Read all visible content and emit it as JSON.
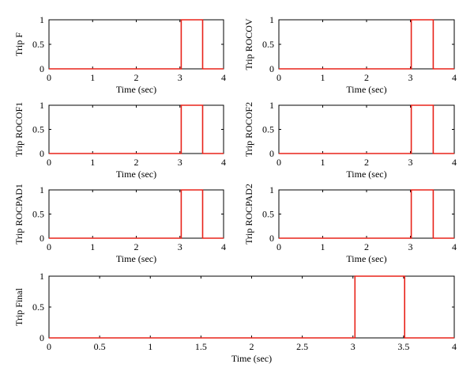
{
  "chart_data": [
    {
      "type": "line",
      "ylabel": "Trip F",
      "xlabel": "Time (sec)",
      "xlim": [
        0,
        4
      ],
      "ylim": [
        0,
        1
      ],
      "xticks": [
        0,
        1,
        2,
        3,
        4
      ],
      "xtick_labels": [
        "0",
        "1",
        "2",
        "3",
        "4"
      ],
      "yticks": [
        0,
        0.5,
        1
      ],
      "ytick_labels": [
        "0",
        "0.5",
        "1"
      ],
      "series": [
        {
          "color": "#e8231a",
          "x": [
            0,
            3.03,
            3.03,
            3.52,
            3.52,
            4
          ],
          "y": [
            0,
            0,
            1,
            1,
            0,
            0
          ]
        }
      ]
    },
    {
      "type": "line",
      "ylabel": "Trip ROCOV",
      "xlabel": "Time (sec)",
      "xlim": [
        0,
        4
      ],
      "ylim": [
        0,
        1
      ],
      "xticks": [
        0,
        1,
        2,
        3,
        4
      ],
      "xtick_labels": [
        "0",
        "1",
        "2",
        "3",
        "4"
      ],
      "yticks": [
        0,
        0.5,
        1
      ],
      "ytick_labels": [
        "0",
        "0.5",
        "1"
      ],
      "series": [
        {
          "color": "#e8231a",
          "x": [
            0,
            3.02,
            3.02,
            3.52,
            3.52,
            4
          ],
          "y": [
            0,
            0,
            1,
            1,
            0,
            0
          ]
        }
      ]
    },
    {
      "type": "line",
      "ylabel": "Trip ROCOF1",
      "xlabel": "Time (sec)",
      "xlim": [
        0,
        4
      ],
      "ylim": [
        0,
        1
      ],
      "xticks": [
        0,
        1,
        2,
        3,
        4
      ],
      "xtick_labels": [
        "0",
        "1",
        "2",
        "3",
        "4"
      ],
      "yticks": [
        0,
        0.5,
        1
      ],
      "ytick_labels": [
        "0",
        "0.5",
        "1"
      ],
      "series": [
        {
          "color": "#e8231a",
          "x": [
            0,
            3.03,
            3.03,
            3.52,
            3.52,
            4
          ],
          "y": [
            0,
            0,
            1,
            1,
            0,
            0
          ]
        }
      ]
    },
    {
      "type": "line",
      "ylabel": "Trip ROCOF2",
      "xlabel": "Time (sec)",
      "xlim": [
        0,
        4
      ],
      "ylim": [
        0,
        1
      ],
      "xticks": [
        0,
        1,
        2,
        3,
        4
      ],
      "xtick_labels": [
        "0",
        "1",
        "2",
        "3",
        "4"
      ],
      "yticks": [
        0,
        0.5,
        1
      ],
      "ytick_labels": [
        "0",
        "0.5",
        "1"
      ],
      "series": [
        {
          "color": "#e8231a",
          "x": [
            0,
            3.02,
            3.02,
            3.52,
            3.52,
            4
          ],
          "y": [
            0,
            0,
            1,
            1,
            0,
            0
          ]
        }
      ]
    },
    {
      "type": "line",
      "ylabel": "Trip ROCPAD1",
      "xlabel": "Time (sec)",
      "xlim": [
        0,
        4
      ],
      "ylim": [
        0,
        1
      ],
      "xticks": [
        0,
        1,
        2,
        3,
        4
      ],
      "xtick_labels": [
        "0",
        "1",
        "2",
        "3",
        "4"
      ],
      "yticks": [
        0,
        0.5,
        1
      ],
      "ytick_labels": [
        "0",
        "0.5",
        "1"
      ],
      "series": [
        {
          "color": "#e8231a",
          "x": [
            0,
            3.03,
            3.03,
            3.52,
            3.52,
            4
          ],
          "y": [
            0,
            0,
            1,
            1,
            0,
            0
          ]
        }
      ]
    },
    {
      "type": "line",
      "ylabel": "Trip ROCPAD2",
      "xlabel": "Time (sec)",
      "xlim": [
        0,
        4
      ],
      "ylim": [
        0,
        1
      ],
      "xticks": [
        0,
        1,
        2,
        3,
        4
      ],
      "xtick_labels": [
        "0",
        "1",
        "2",
        "3",
        "4"
      ],
      "yticks": [
        0,
        0.5,
        1
      ],
      "ytick_labels": [
        "0",
        "0.5",
        "1"
      ],
      "series": [
        {
          "color": "#e8231a",
          "x": [
            0,
            3.02,
            3.02,
            3.52,
            3.52,
            4
          ],
          "y": [
            0,
            0,
            1,
            1,
            0,
            0
          ]
        }
      ]
    },
    {
      "type": "line",
      "ylabel": "Trip Final",
      "xlabel": "Time (sec)",
      "xlim": [
        0,
        4
      ],
      "ylim": [
        0,
        1
      ],
      "xticks": [
        0,
        0.5,
        1,
        1.5,
        2,
        2.5,
        3,
        3.5,
        4
      ],
      "xtick_labels": [
        "0",
        "0.5",
        "1",
        "1.5",
        "2",
        "2.5",
        "3",
        "3.5",
        "4"
      ],
      "yticks": [
        0,
        0.5,
        1
      ],
      "ytick_labels": [
        "0",
        "0.5",
        "1"
      ],
      "series": [
        {
          "color": "#e8231a",
          "x": [
            0,
            3.02,
            3.02,
            3.51,
            3.51,
            4
          ],
          "y": [
            0,
            0,
            1,
            1,
            0,
            0
          ]
        }
      ]
    }
  ]
}
